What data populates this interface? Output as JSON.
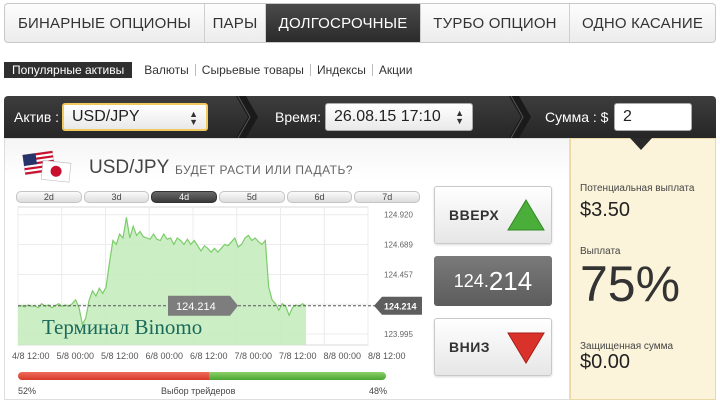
{
  "tabs": [
    {
      "label": "БИНАРНЫЕ ОПЦИОНЫ",
      "active": false
    },
    {
      "label": "ПАРЫ",
      "active": false
    },
    {
      "label": "ДОЛГОСРОЧНЫЕ",
      "active": true
    },
    {
      "label": "ТУРБО ОПЦИОН",
      "active": false
    },
    {
      "label": "ОДНО КАСАНИЕ",
      "active": false
    }
  ],
  "subnav": [
    {
      "label": "Популярные активы",
      "active": true
    },
    {
      "label": "Валюты",
      "active": false
    },
    {
      "label": "Сырьевые товары",
      "active": false
    },
    {
      "label": "Индексы",
      "active": false
    },
    {
      "label": "Акции",
      "active": false
    }
  ],
  "bar": {
    "asset_label": "Актив :",
    "asset_value": "USD/JPY",
    "time_label": "Время:",
    "time_value": "26.08.15 17:10",
    "amount_label": "Сумма : $",
    "amount_value": "2"
  },
  "asset": {
    "title": "USD/JPY",
    "question": "БУДЕТ РАСТИ ИЛИ ПАДАТЬ?"
  },
  "periods": [
    "2d",
    "3d",
    "4d",
    "5d",
    "6d",
    "7d"
  ],
  "active_period": "4d",
  "chart_data": {
    "type": "area",
    "title": "",
    "xlabel": "",
    "ylabel": "",
    "y_ticks": [
      "124.920",
      "124.689",
      "124.457",
      "124.226",
      "123.995"
    ],
    "x_ticks": [
      "4/8 12:00",
      "5/8 00:00",
      "5/8 12:00",
      "6/8 00:00",
      "6/8 12:00",
      "7/8 00:00",
      "7/8 12:00",
      "8/8 00:00",
      "8/8 12:00"
    ],
    "ylim": [
      123.91,
      124.98
    ],
    "current_price_label": "124.214",
    "current_price_value": 124.214,
    "series": [
      {
        "values": [
          124.21,
          124.215,
          124.205,
          124.22,
          124.21,
          124.215,
          124.2,
          124.23,
          124.21,
          124.22,
          124.2,
          124.215,
          124.23,
          124.21,
          124.22,
          124.21,
          124.23,
          124.26,
          124.2,
          124.07,
          124.12,
          124.26,
          124.33,
          124.29,
          124.35,
          124.31,
          124.36,
          124.55,
          124.72,
          124.69,
          124.77,
          124.74,
          124.9,
          124.74,
          124.83,
          124.76,
          124.79,
          124.75,
          124.74,
          124.73,
          124.77,
          124.73,
          124.72,
          124.77,
          124.73,
          124.74,
          124.69,
          124.74,
          124.72,
          124.69,
          124.73,
          124.69,
          124.72,
          124.68,
          124.64,
          124.68,
          124.66,
          124.63,
          124.66,
          124.63,
          124.66,
          124.69,
          124.68,
          124.71,
          124.74,
          124.67,
          124.69,
          124.74,
          124.76,
          124.72,
          124.74,
          124.71,
          124.69,
          124.72,
          124.36,
          124.26,
          124.23,
          124.18,
          124.23,
          124.21,
          124.14,
          124.2,
          124.22,
          124.21,
          124.23,
          124.21
        ]
      }
    ]
  },
  "x_axis": {
    "ticks": [
      "4/8 12:00",
      "5/8 00:00",
      "5/8 12:00",
      "6/8 00:00",
      "6/8 12:00",
      "7/8 00:00",
      "7/8 12:00",
      "8/8 00:00",
      "8/8 12:00"
    ]
  },
  "watermark": "Терминал Binomo",
  "buttons": {
    "up_label": "ВВЕРХ",
    "down_label": "ВНИЗ"
  },
  "price": {
    "big": "124.",
    "small": "214"
  },
  "price_full": "124.214",
  "traders": {
    "down_percent": "52%",
    "label": "Выбор трейдеров",
    "up_percent": "48%",
    "down_fraction": 0.52
  },
  "sidebar": {
    "potential_label": "Потенциальная выплата",
    "potential_value": "$3.50",
    "payout_label": "Выплата",
    "payout_value": "75%",
    "protected_label": "Защищенная сумма",
    "protected_value": "$0.00"
  },
  "colors": {
    "up": "#4cae3a",
    "down": "#d9322a",
    "area_fill": "#c7ecbf",
    "area_line": "#7ccc6a",
    "sidebar_bg": "#fbf3da"
  }
}
